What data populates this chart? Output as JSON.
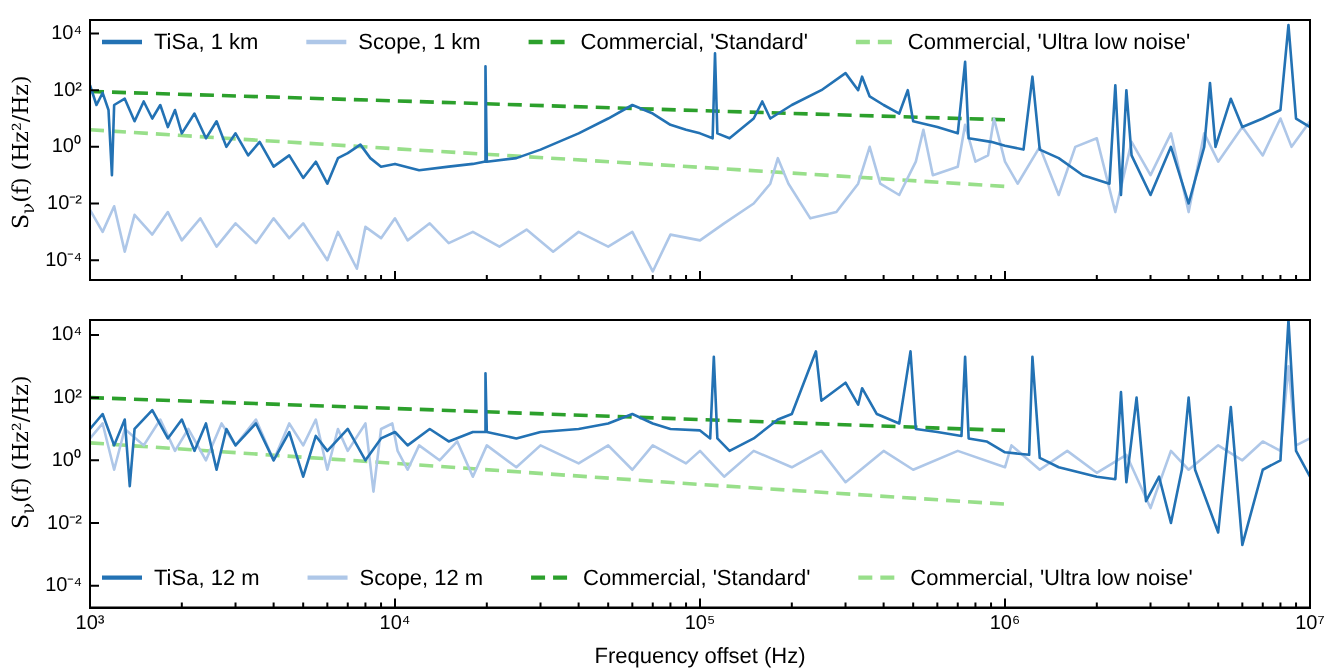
{
  "chart_data": [
    {
      "type": "line",
      "log": "xy",
      "marker": "none",
      "legend": "top",
      "tick_labels": "y",
      "ylabel": "S$_{ν}$(f) (Hz²/Hz)",
      "xlim": [
        1000,
        10000000
      ],
      "xticks": [
        {
          "value": 1000,
          "label": null
        },
        {
          "value": 2000,
          "label": null
        },
        {
          "value": 3000,
          "label": null
        },
        {
          "value": 4000,
          "label": null
        },
        {
          "value": 5000,
          "label": null
        },
        {
          "value": 6000,
          "label": null
        },
        {
          "value": 7000,
          "label": null
        },
        {
          "value": 8000,
          "label": null
        },
        {
          "value": 9000,
          "label": null
        },
        {
          "value": 10000,
          "label": null
        },
        {
          "value": 20000,
          "label": null
        },
        {
          "value": 30000,
          "label": null
        },
        {
          "value": 40000,
          "label": null
        },
        {
          "value": 50000,
          "label": null
        },
        {
          "value": 60000,
          "label": null
        },
        {
          "value": 70000,
          "label": null
        },
        {
          "value": 80000,
          "label": null
        },
        {
          "value": 90000,
          "label": null
        },
        {
          "value": 100000,
          "label": null
        },
        {
          "value": 200000,
          "label": null
        },
        {
          "value": 300000,
          "label": null
        },
        {
          "value": 400000,
          "label": null
        },
        {
          "value": 500000,
          "label": null
        },
        {
          "value": 600000,
          "label": null
        },
        {
          "value": 700000,
          "label": null
        },
        {
          "value": 800000,
          "label": null
        },
        {
          "value": 900000,
          "label": null
        },
        {
          "value": 1000000,
          "label": null
        },
        {
          "value": 2000000,
          "label": null
        },
        {
          "value": 3000000,
          "label": null
        },
        {
          "value": 4000000,
          "label": null
        },
        {
          "value": 5000000,
          "label": null
        },
        {
          "value": 6000000,
          "label": null
        },
        {
          "value": 7000000,
          "label": null
        },
        {
          "value": 8000000,
          "label": null
        },
        {
          "value": 9000000,
          "label": null
        },
        {
          "value": 10000000,
          "label": null
        }
      ],
      "ylim": [
        2e-05,
        30000
      ],
      "yticks": [
        {
          "value": 0.0001,
          "label": "10⁻⁴"
        },
        {
          "value": 0.01,
          "label": "10⁻²"
        },
        {
          "value": 1,
          "label": "10⁰"
        },
        {
          "value": 100,
          "label": "10²"
        },
        {
          "value": 10000,
          "label": "10⁴"
        }
      ],
      "series": [
        {
          "name": "TiSa, 1 km",
          "color": "#2372b4",
          "line_style": "solid",
          "x": [
            1000,
            1050,
            1100,
            1150,
            1180,
            1200,
            1300,
            1400,
            1500,
            1600,
            1700,
            1800,
            1900,
            2000,
            2200,
            2400,
            2600,
            2800,
            3000,
            3300,
            3600,
            4000,
            4500,
            5000,
            5500,
            6000,
            6500,
            7000,
            7700,
            8300,
            9000,
            10000,
            12000,
            15000,
            18000,
            19600,
            19800,
            20000,
            25000,
            30000,
            40000,
            50000,
            60000,
            70000,
            80000,
            90000,
            100000,
            110000,
            112000,
            114000,
            125000,
            150000,
            160000,
            170000,
            200000,
            250000,
            300000,
            330000,
            340000,
            360000,
            400000,
            450000,
            480000,
            500000,
            600000,
            700000,
            740000,
            760000,
            900000,
            1000000,
            1150000,
            1230000,
            1300000,
            1500000,
            1800000,
            2200000,
            2300000,
            2400000,
            2500000,
            2600000,
            3000000,
            3500000,
            4000000,
            4500000,
            4700000,
            4900000,
            5500000,
            6000000,
            7000000,
            8000000,
            8500000,
            9000000,
            10000000
          ],
          "values": [
            150,
            30,
            80,
            20,
            0.1,
            30,
            50,
            8,
            40,
            10,
            30,
            5,
            20,
            3,
            15,
            2,
            8,
            1,
            3,
            0.5,
            1.5,
            0.2,
            0.5,
            0.08,
            0.3,
            0.05,
            0.4,
            0.6,
            1.2,
            0.4,
            0.2,
            0.25,
            0.15,
            0.2,
            0.25,
            0.3,
            700,
            0.3,
            0.4,
            0.8,
            3,
            10,
            30,
            15,
            6,
            4,
            3,
            2,
            2000,
            3,
            2,
            10,
            40,
            10,
            30,
            100,
            400,
            100,
            300,
            60,
            30,
            15,
            100,
            8,
            5,
            3,
            1000,
            2,
            1.5,
            1.1,
            0.8,
            300,
            0.8,
            0.4,
            0.1,
            0.05,
            150,
            0.02,
            100,
            0.5,
            0.02,
            1,
            0.01,
            1,
            180,
            1,
            50,
            5,
            10,
            20,
            20000,
            10,
            5
          ]
        },
        {
          "name": "Scope, 1 km",
          "color": "#aec7e8",
          "line_style": "solid",
          "x": [
            1000,
            1100,
            1200,
            1300,
            1400,
            1600,
            1800,
            2000,
            2300,
            2600,
            3000,
            3500,
            4000,
            4500,
            5000,
            6000,
            6500,
            7500,
            8000,
            9000,
            10000,
            11000,
            13000,
            15000,
            18000,
            22000,
            27000,
            33000,
            40000,
            50000,
            60000,
            70000,
            80000,
            100000,
            120000,
            150000,
            170000,
            180000,
            195000,
            230000,
            280000,
            330000,
            360000,
            390000,
            450000,
            510000,
            540000,
            580000,
            700000,
            740000,
            800000,
            880000,
            920000,
            1000000,
            1100000,
            1300000,
            1500000,
            1700000,
            2000000,
            2300000,
            2600000,
            3000000,
            3500000,
            4000000,
            4500000,
            5000000,
            6000000,
            7000000,
            8000000,
            8700000,
            10000000
          ],
          "values": [
            0.006,
            0.001,
            0.008,
            0.0002,
            0.004,
            0.0008,
            0.005,
            0.0005,
            0.003,
            0.0003,
            0.002,
            0.0004,
            0.003,
            0.0006,
            0.002,
            0.0001,
            0.001,
            5e-05,
            0.0015,
            0.0006,
            0.003,
            0.0005,
            0.002,
            0.0004,
            0.001,
            0.0003,
            0.0012,
            0.0002,
            0.001,
            0.0003,
            0.001,
            4e-05,
            0.0008,
            0.0005,
            0.002,
            0.01,
            0.05,
            0.4,
            0.05,
            0.003,
            0.005,
            0.05,
            1,
            0.05,
            0.02,
            0.3,
            4,
            0.1,
            0.2,
            6,
            0.3,
            0.5,
            10,
            0.3,
            0.05,
            1,
            0.02,
            1,
            2,
            0.005,
            1.5,
            0.1,
            3,
            0.005,
            3,
            0.3,
            5,
            0.5,
            10,
            1,
            8
          ]
        },
        {
          "name": "Commercial, 'Standard'",
          "color": "#2ca02c",
          "line_style": "dashed",
          "x": [
            1000,
            10000,
            100000,
            1000000
          ],
          "values": [
            90,
            42,
            19,
            9
          ]
        },
        {
          "name": "Commercial, 'Ultra low noise'",
          "color": "#98df8a",
          "line_style": "dashed",
          "x": [
            1000,
            10000,
            100000,
            1000000
          ],
          "values": [
            4,
            0.86,
            0.19,
            0.04
          ]
        }
      ]
    },
    {
      "type": "line",
      "log": "xy",
      "marker": "none",
      "legend": "bottom",
      "ylabel": "S$_{ν}$(f) (Hz²/Hz)",
      "xlabel": "Frequency offset (Hz)",
      "xlim": [
        1000,
        10000000
      ],
      "xticks": [
        {
          "value": 1000,
          "label": "10³"
        },
        {
          "value": 2000,
          "label": null
        },
        {
          "value": 3000,
          "label": null
        },
        {
          "value": 4000,
          "label": null
        },
        {
          "value": 5000,
          "label": null
        },
        {
          "value": 6000,
          "label": null
        },
        {
          "value": 7000,
          "label": null
        },
        {
          "value": 8000,
          "label": null
        },
        {
          "value": 9000,
          "label": null
        },
        {
          "value": 10000,
          "label": "10⁴"
        },
        {
          "value": 20000,
          "label": null
        },
        {
          "value": 30000,
          "label": null
        },
        {
          "value": 40000,
          "label": null
        },
        {
          "value": 50000,
          "label": null
        },
        {
          "value": 60000,
          "label": null
        },
        {
          "value": 70000,
          "label": null
        },
        {
          "value": 80000,
          "label": null
        },
        {
          "value": 90000,
          "label": null
        },
        {
          "value": 100000,
          "label": "10⁵"
        },
        {
          "value": 200000,
          "label": null
        },
        {
          "value": 300000,
          "label": null
        },
        {
          "value": 400000,
          "label": null
        },
        {
          "value": 500000,
          "label": null
        },
        {
          "value": 600000,
          "label": null
        },
        {
          "value": 700000,
          "label": null
        },
        {
          "value": 800000,
          "label": null
        },
        {
          "value": 900000,
          "label": null
        },
        {
          "value": 1000000,
          "label": "10⁶"
        },
        {
          "value": 2000000,
          "label": null
        },
        {
          "value": 3000000,
          "label": null
        },
        {
          "value": 4000000,
          "label": null
        },
        {
          "value": 5000000,
          "label": null
        },
        {
          "value": 6000000,
          "label": null
        },
        {
          "value": 7000000,
          "label": null
        },
        {
          "value": 8000000,
          "label": null
        },
        {
          "value": 9000000,
          "label": null
        },
        {
          "value": 10000000,
          "label": "10⁷"
        }
      ],
      "ylim": [
        2e-05,
        30000
      ],
      "yticks": [
        {
          "value": 0.0001,
          "label": "10⁻⁴"
        },
        {
          "value": 0.01,
          "label": "10⁻²"
        },
        {
          "value": 1,
          "label": "10⁰"
        },
        {
          "value": 100,
          "label": "10²"
        },
        {
          "value": 10000,
          "label": "10⁴"
        }
      ],
      "series": [
        {
          "name": "TiSa, 12 m",
          "color": "#2372b4",
          "line_style": "solid",
          "x": [
            1000,
            1100,
            1200,
            1300,
            1350,
            1400,
            1600,
            1800,
            2000,
            2200,
            2400,
            2600,
            2800,
            3000,
            3500,
            4000,
            4500,
            5000,
            5500,
            6000,
            7000,
            8000,
            9000,
            10000,
            11000,
            13000,
            15000,
            18000,
            19600,
            19800,
            20000,
            25000,
            30000,
            40000,
            50000,
            60000,
            70000,
            80000,
            100000,
            108000,
            111000,
            114000,
            125000,
            150000,
            180000,
            200000,
            240000,
            250000,
            300000,
            330000,
            340000,
            380000,
            450000,
            490000,
            510000,
            600000,
            720000,
            740000,
            760000,
            870000,
            1000000,
            1200000,
            1230000,
            1300000,
            1500000,
            2000000,
            2300000,
            2400000,
            2500000,
            2700000,
            2900000,
            3200000,
            3500000,
            3800000,
            4000000,
            4200000,
            5000000,
            5500000,
            6000000,
            7000000,
            8000000,
            8500000,
            9000000,
            10000000
          ],
          "values": [
            10,
            30,
            3,
            20,
            0.15,
            10,
            40,
            5,
            20,
            2,
            15,
            0.5,
            10,
            3,
            15,
            1,
            8,
            0.3,
            6,
            2,
            10,
            1,
            5,
            8,
            3,
            10,
            4,
            8,
            8,
            600,
            8,
            5,
            8,
            10,
            15,
            30,
            15,
            10,
            9,
            5,
            2000,
            5,
            2,
            5,
            20,
            30,
            3000,
            80,
            300,
            60,
            200,
            30,
            15,
            3000,
            10,
            8,
            6,
            2000,
            5,
            4,
            1.8,
            1.5,
            2000,
            1.2,
            0.6,
            0.3,
            0.25,
            150,
            0.2,
            100,
            0.05,
            0.3,
            0.01,
            0.5,
            100,
            0.5,
            0.005,
            50,
            0.002,
            0.5,
            1,
            30000,
            2,
            0.3
          ]
        },
        {
          "name": "Scope, 12 m",
          "color": "#aec7e8",
          "line_style": "solid",
          "x": [
            1000,
            1100,
            1200,
            1300,
            1500,
            1700,
            1900,
            2100,
            2400,
            2700,
            3000,
            3500,
            4000,
            4500,
            5000,
            5500,
            6000,
            6500,
            7000,
            8000,
            8500,
            9000,
            9800,
            10200,
            11000,
            12000,
            14000,
            16000,
            18000,
            20000,
            25000,
            30000,
            40000,
            50000,
            60000,
            70000,
            90000,
            100000,
            120000,
            150000,
            200000,
            250000,
            300000,
            400000,
            500000,
            700000,
            1000000,
            1050000,
            1300000,
            1600000,
            2000000,
            2500000,
            3000000,
            3500000,
            4000000,
            5000000,
            6000000,
            7000000,
            8000000,
            8500000,
            9000000,
            10000000
          ],
          "values": [
            5,
            15,
            0.5,
            10,
            3,
            20,
            2,
            10,
            1,
            15,
            3,
            20,
            1,
            15,
            3,
            20,
            0.5,
            10,
            2,
            15,
            0.1,
            10,
            15,
            2,
            0.5,
            3,
            1,
            4,
            0.3,
            3,
            0.6,
            3,
            0.8,
            3,
            0.5,
            3,
            0.8,
            2,
            0.3,
            2,
            0.6,
            2,
            0.2,
            2,
            0.5,
            2,
            0.6,
            3,
            0.5,
            2,
            0.4,
            1.5,
            0.03,
            2,
            0.5,
            3,
            1,
            4,
            2,
            1000,
            3,
            5
          ]
        },
        {
          "name": "Commercial, 'Standard'",
          "color": "#2ca02c",
          "line_style": "dashed",
          "x": [
            1000,
            10000,
            100000,
            1000000
          ],
          "values": [
            100,
            45,
            20,
            9
          ]
        },
        {
          "name": "Commercial, 'Ultra low noise'",
          "color": "#98df8a",
          "line_style": "dashed",
          "x": [
            1000,
            10000,
            100000,
            1000000
          ],
          "values": [
            3.6,
            0.8,
            0.17,
            0.04
          ]
        }
      ]
    }
  ]
}
